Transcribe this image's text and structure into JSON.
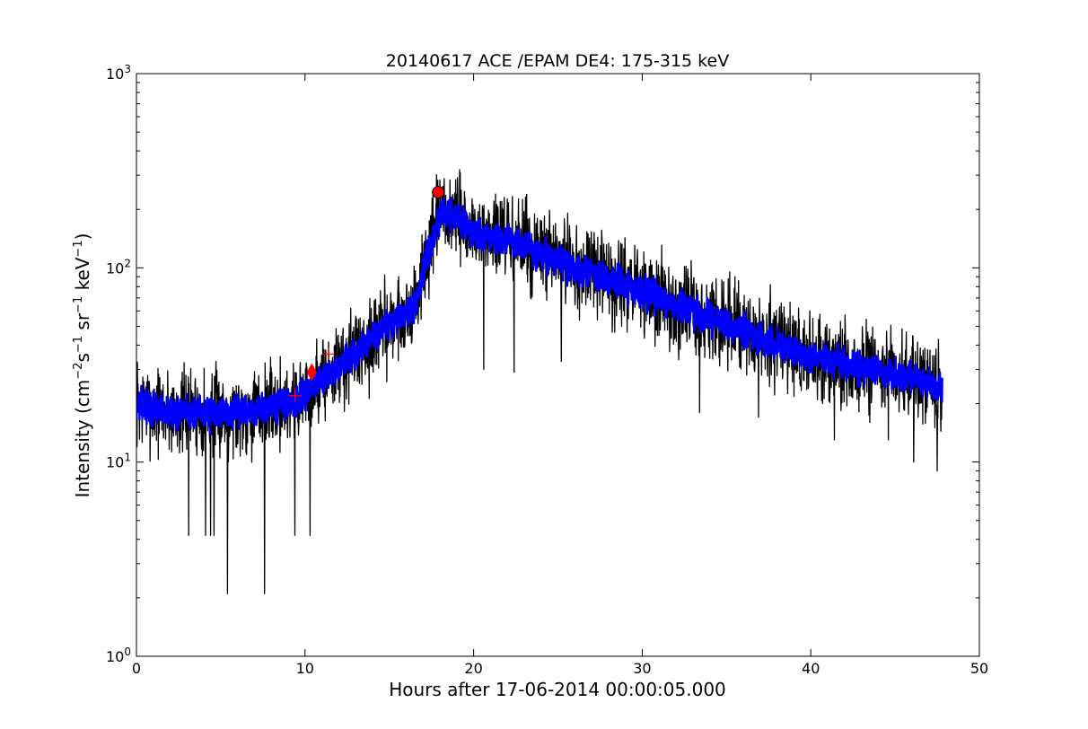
{
  "chart_data": {
    "type": "line",
    "title": "20140617 ACE /EPAM DE4: 175-315 keV",
    "xlabel": "Hours after 17-06-2014 00:00:05.000",
    "ylabel": "Intensity (cm$^{-2}$s$^{-1}$sr$^{-1}$keV$^{-1}$)",
    "ylabel_parts": {
      "prefix": "Intensity (cm",
      "sup1": "−2",
      "mid1": "s",
      "sup2": "−1",
      "mid2": " sr",
      "sup3": "−1",
      "mid3": " keV",
      "sup4": "−1",
      "suffix": ")"
    },
    "xlim": [
      0,
      50
    ],
    "ylim": [
      1,
      1000
    ],
    "yscale": "log",
    "grid": false,
    "x_ticks": [
      0,
      10,
      20,
      30,
      40,
      50
    ],
    "x_tick_labels": [
      "0",
      "10",
      "20",
      "30",
      "40",
      "50"
    ],
    "y_ticks": [
      1,
      10,
      100,
      1000
    ],
    "y_tick_labels": [
      {
        "base": "10",
        "exp": "0"
      },
      {
        "base": "10",
        "exp": "1"
      },
      {
        "base": "10",
        "exp": "2"
      },
      {
        "base": "10",
        "exp": "3"
      }
    ],
    "series": [
      {
        "role": "raw",
        "color": "#000000",
        "trend_points": [
          [
            0,
            20
          ],
          [
            2,
            18
          ],
          [
            4,
            18
          ],
          [
            6,
            18
          ],
          [
            8,
            19
          ],
          [
            9.5,
            21
          ],
          [
            10.5,
            25
          ],
          [
            12,
            31
          ],
          [
            13.5,
            40
          ],
          [
            15,
            52
          ],
          [
            16.5,
            62
          ],
          [
            17.2,
            110
          ],
          [
            18,
            185
          ],
          [
            19,
            185
          ],
          [
            20,
            150
          ],
          [
            22,
            140
          ],
          [
            24,
            118
          ],
          [
            26,
            100
          ],
          [
            28,
            87
          ],
          [
            30,
            75
          ],
          [
            32,
            65
          ],
          [
            34,
            55
          ],
          [
            36,
            47
          ],
          [
            38,
            40
          ],
          [
            40,
            35
          ],
          [
            42,
            32
          ],
          [
            44,
            30
          ],
          [
            46,
            27
          ],
          [
            47.8,
            24
          ]
        ],
        "scatter_factor": 1.6,
        "dips": [
          [
            5.4,
            2.1
          ],
          [
            7.6,
            2.1
          ],
          [
            3.1,
            4.2
          ],
          [
            4.1,
            4.2
          ],
          [
            4.4,
            4.2
          ],
          [
            4.6,
            4.2
          ],
          [
            9.4,
            4.2
          ],
          [
            10.3,
            4.2
          ],
          [
            20.6,
            30
          ],
          [
            22.4,
            29
          ],
          [
            25.2,
            33
          ],
          [
            33.4,
            18
          ],
          [
            36.9,
            17
          ],
          [
            41.4,
            13
          ],
          [
            43.5,
            16
          ],
          [
            44.6,
            13
          ],
          [
            46.1,
            10
          ],
          [
            47.5,
            9
          ]
        ],
        "peaks": [
          [
            21.3,
            240
          ],
          [
            22.9,
            225
          ],
          [
            24.2,
            185
          ],
          [
            26.1,
            165
          ],
          [
            35.5,
            90
          ],
          [
            37.6,
            82
          ]
        ]
      },
      {
        "role": "smoothed",
        "color": "#0000ff",
        "trend_points": [
          [
            0,
            20
          ],
          [
            2,
            18
          ],
          [
            4,
            18
          ],
          [
            6,
            18
          ],
          [
            8,
            19
          ],
          [
            9.5,
            21
          ],
          [
            10.5,
            25
          ],
          [
            12,
            31
          ],
          [
            13.5,
            40
          ],
          [
            15,
            52
          ],
          [
            16.5,
            62
          ],
          [
            17.2,
            110
          ],
          [
            18,
            185
          ],
          [
            19,
            185
          ],
          [
            20,
            150
          ],
          [
            22,
            140
          ],
          [
            24,
            118
          ],
          [
            26,
            100
          ],
          [
            28,
            87
          ],
          [
            30,
            75
          ],
          [
            32,
            65
          ],
          [
            34,
            55
          ],
          [
            36,
            47
          ],
          [
            38,
            40
          ],
          [
            40,
            35
          ],
          [
            42,
            32
          ],
          [
            44,
            30
          ],
          [
            46,
            27
          ],
          [
            47.8,
            24
          ]
        ],
        "scatter_factor": 1.18
      }
    ],
    "markers": [
      {
        "kind": "circle",
        "x": 17.9,
        "y": 245,
        "color": "#ff0000"
      },
      {
        "kind": "diamond",
        "x": 10.4,
        "y": 29,
        "color": "#ff0000"
      },
      {
        "kind": "plus",
        "x": 9.4,
        "y": 22,
        "color": "#ff0000"
      },
      {
        "kind": "plus",
        "x": 11.4,
        "y": 36,
        "color": "#ff0000"
      }
    ]
  }
}
